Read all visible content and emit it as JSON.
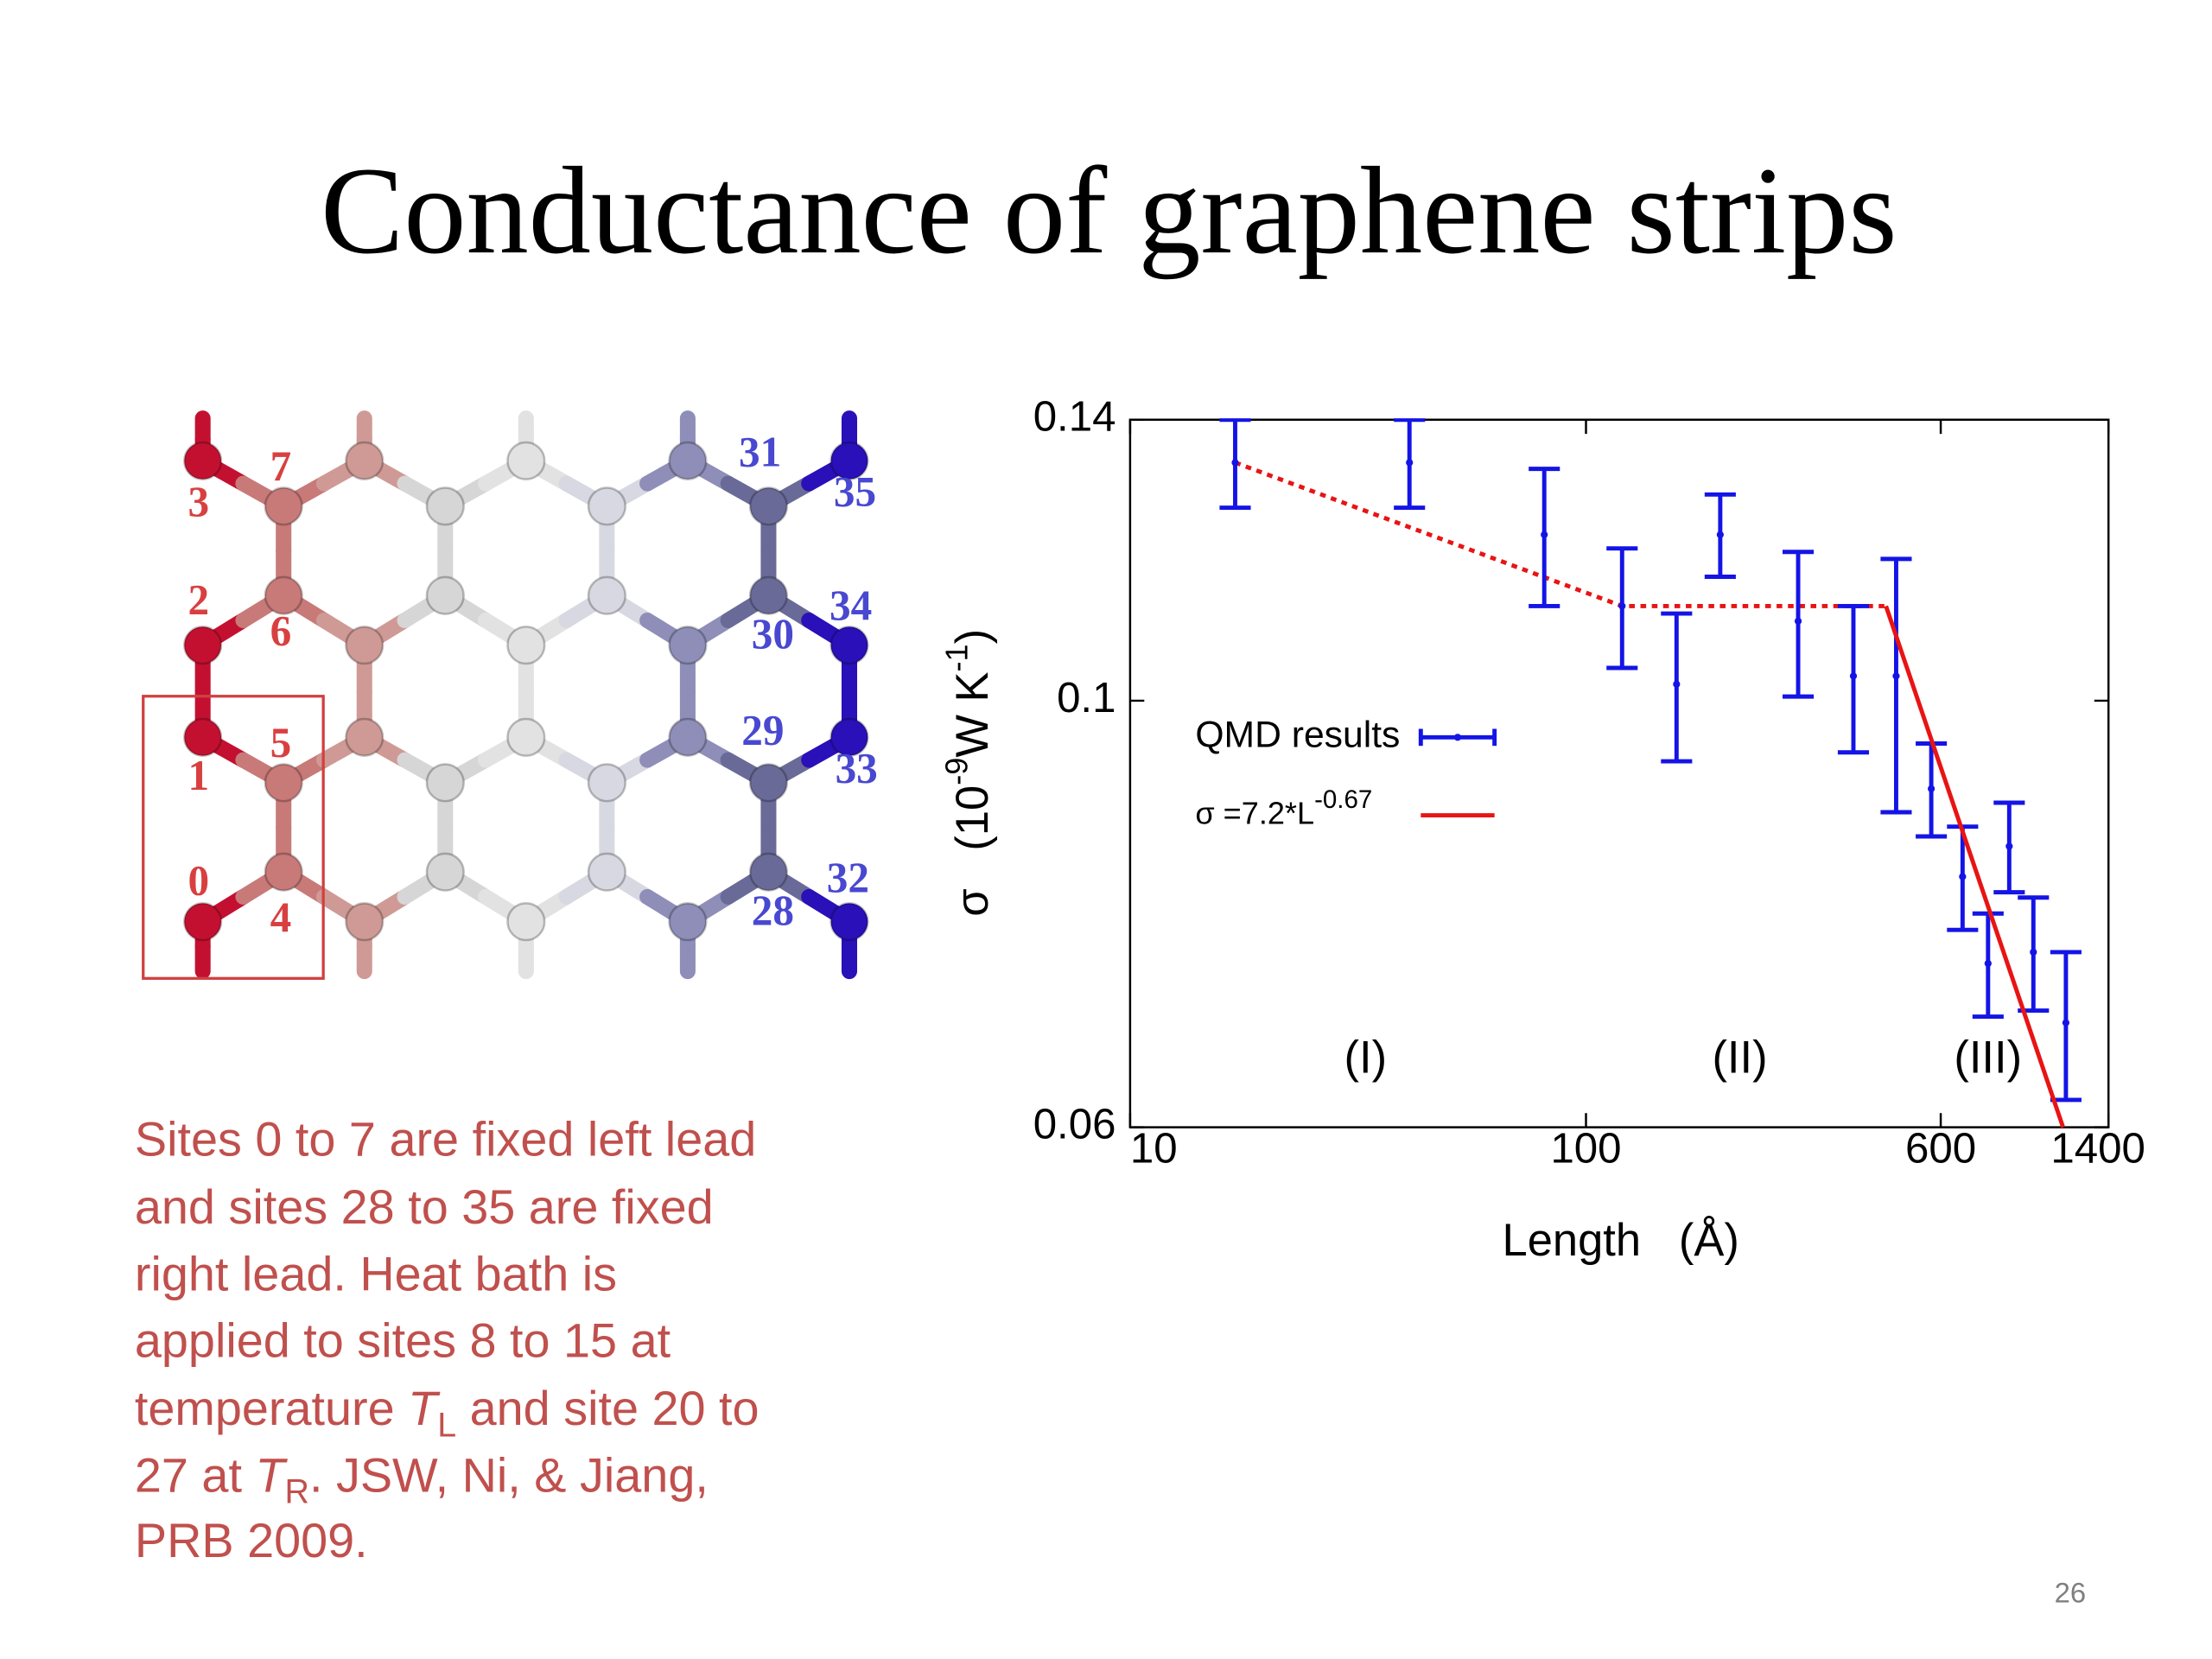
{
  "title": "Conductance of graphene strips",
  "diagram": {
    "labels": [
      3,
      7,
      2,
      6,
      1,
      5,
      0,
      4,
      31,
      35,
      34,
      30,
      29,
      33,
      32,
      28
    ]
  },
  "caption": {
    "lines": [
      [
        "Sites 0 to 7 are fixed left lead"
      ],
      [
        "and sites 28 to 35 are fixed"
      ],
      [
        "right lead.  Heat bath is"
      ],
      [
        "applied to sites 8 to 15 at"
      ],
      [
        "temperature ",
        "T",
        "L",
        " and site 20 to"
      ],
      [
        "27 at ",
        "T",
        "R",
        ". JSW, Ni, & Jiang,"
      ],
      [
        "PRB 2009."
      ]
    ]
  },
  "chart_data": {
    "type": "line",
    "xlabel": "Length   (Å)",
    "ylabel": [
      "σ   (10",
      "-9",
      "W K",
      "-1",
      ")"
    ],
    "xscale": "log",
    "yscale": "log",
    "xlim": [
      10,
      1400
    ],
    "ylim": [
      0.06,
      0.14
    ],
    "xticks": [
      10,
      100,
      600,
      1400
    ],
    "yticks": [
      0.06,
      0.1,
      0.14
    ],
    "annotations": [
      "(I)",
      "(II)",
      "(III)"
    ],
    "series": [
      {
        "name": "QMD results",
        "color": "#1414e6",
        "style": "errorbar",
        "x": [
          17,
          41,
          81,
          120,
          158,
          197,
          292,
          386,
          479,
          572,
          670,
          762,
          848,
          958,
          1129
        ],
        "values": [
          0.133,
          0.133,
          0.122,
          0.112,
          0.102,
          0.122,
          0.11,
          0.103,
          0.103,
          0.09,
          0.081,
          0.073,
          0.084,
          0.074,
          0.068
        ],
        "errors": [
          0.007,
          0.007,
          0.01,
          0.008,
          0.009,
          0.006,
          0.0095,
          0.009,
          0.0155,
          0.005,
          0.005,
          0.0045,
          0.0045,
          0.005,
          0.006
        ]
      },
      {
        "name": "σ =7.2*L",
        "name_sup": "-0.67",
        "color": "#e81414",
        "style": "solid",
        "x": [
          455,
          1113
        ],
        "values": [
          0.112,
          0.06
        ]
      }
    ],
    "guide": {
      "color": "#e81414",
      "style": "dotted",
      "x": [
        17,
        120,
        455
      ],
      "values": [
        0.133,
        0.112,
        0.112
      ]
    }
  },
  "page_number": "26"
}
